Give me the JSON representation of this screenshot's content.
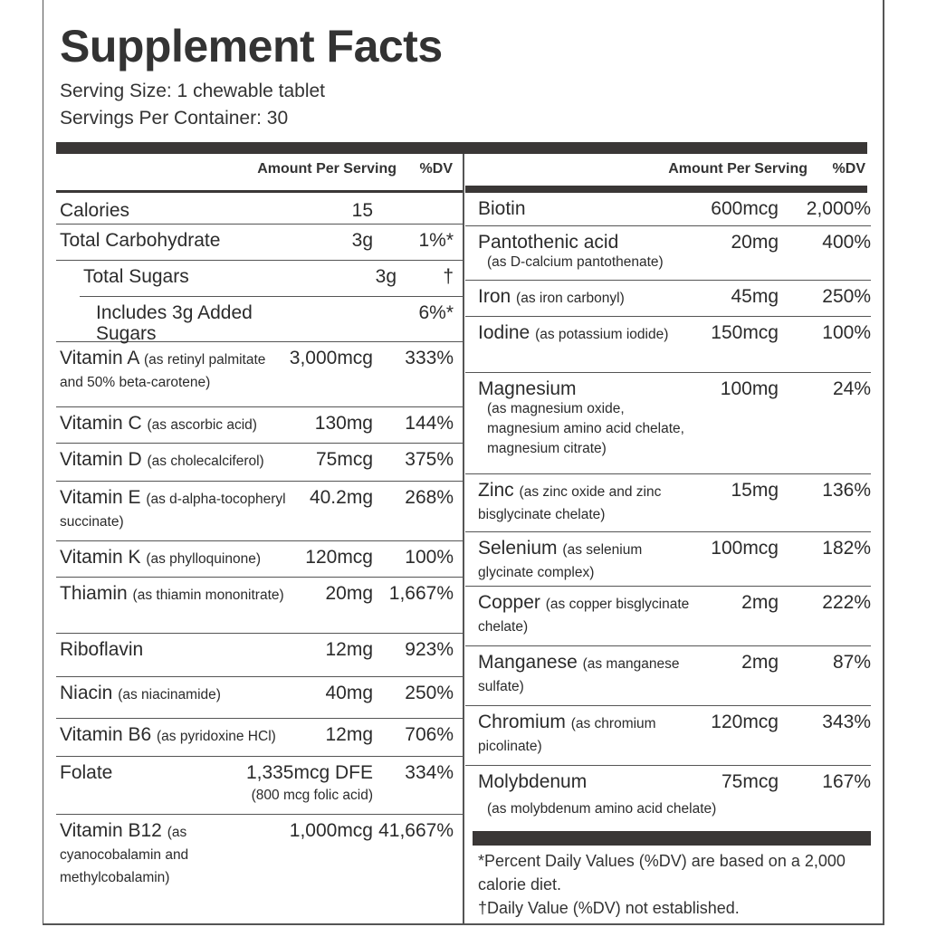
{
  "title": "Supplement Facts",
  "serving_size": "Serving Size: 1 chewable tablet",
  "servings_per_container": "Servings Per Container: 30",
  "left": {
    "amount_header": "Amount Per Serving",
    "dv_header": "%DV",
    "rows": [
      {
        "name": "Calories",
        "amount": "15"
      },
      {
        "name": "Total Carbohydrate",
        "amount": "3g",
        "dv": "1%*"
      },
      {
        "name": "Total Sugars",
        "amount": "3g",
        "dv": "†"
      },
      {
        "name": "Includes 3g Added Sugars",
        "dv": "6%*"
      },
      {
        "name": "Vitamin A",
        "note": "(as retinyl palmitate and 50% beta-carotene)",
        "amount": "3,000mcg",
        "dv": "333%"
      },
      {
        "name": "Vitamin C",
        "note": "(as ascorbic acid)",
        "amount": "130mg",
        "dv": "144%"
      },
      {
        "name": "Vitamin D",
        "note": "(as cholecalciferol)",
        "amount": "75mcg",
        "dv": "375%"
      },
      {
        "name": "Vitamin E",
        "note": "(as d-alpha-tocopheryl succinate)",
        "amount": "40.2mg",
        "dv": "268%"
      },
      {
        "name": "Vitamin K",
        "note": "(as phylloquinone)",
        "amount": "120mcg",
        "dv": "100%"
      },
      {
        "name": "Thiamin",
        "note": "(as thiamin mononitrate)",
        "amount": "20mg",
        "dv": "1,667%"
      },
      {
        "name": "Riboflavin",
        "amount": "12mg",
        "dv": "923%"
      },
      {
        "name": "Niacin",
        "note": "(as niacinamide)",
        "amount": "40mg",
        "dv": "250%"
      },
      {
        "name": "Vitamin B6",
        "note": "(as pyridoxine HCl)",
        "amount": "12mg",
        "dv": "706%"
      },
      {
        "name": "Folate",
        "amount": "1,335mcg DFE",
        "amount_note": "(800 mcg folic acid)",
        "dv": "334%"
      },
      {
        "name": "Vitamin B12",
        "note": "(as cyanocobalamin and methylcobalamin)",
        "amount": "1,000mcg",
        "dv": "41,667%"
      }
    ]
  },
  "right": {
    "amount_header": "Amount Per Serving",
    "dv_header": "%DV",
    "rows": [
      {
        "name": "Biotin",
        "amount": "600mcg",
        "dv": "2,000%"
      },
      {
        "name": "Pantothenic acid",
        "note": "(as D-calcium pantothenate)",
        "amount": "20mg",
        "dv": "400%"
      },
      {
        "name": "Iron",
        "note": "(as iron carbonyl)",
        "amount": "45mg",
        "dv": "250%"
      },
      {
        "name": "Iodine",
        "note": "(as potassium iodide)",
        "amount": "150mcg",
        "dv": "100%"
      },
      {
        "name": "Magnesium",
        "note": "(as magnesium oxide, magnesium amino acid chelate, magnesium citrate)",
        "amount": "100mg",
        "dv": "24%"
      },
      {
        "name": "Zinc",
        "note": "(as zinc oxide and zinc bisglycinate chelate)",
        "amount": "15mg",
        "dv": "136%"
      },
      {
        "name": "Selenium",
        "note": "(as selenium glycinate complex)",
        "amount": "100mcg",
        "dv": "182%"
      },
      {
        "name": "Copper",
        "note": "(as copper bisglycinate chelate)",
        "amount": "2mg",
        "dv": "222%"
      },
      {
        "name": "Manganese",
        "note": "(as manganese sulfate)",
        "amount": "2mg",
        "dv": "87%"
      },
      {
        "name": "Chromium",
        "note": "(as chromium picolinate)",
        "amount": "120mcg",
        "dv": "343%"
      },
      {
        "name": "Molybdenum",
        "note": "(as molybdenum amino acid chelate)",
        "amount": "75mcg",
        "dv": "167%"
      }
    ]
  },
  "footnotes": [
    "*Percent Daily Values (%DV) are based on a 2,000 calorie diet.",
    "†Daily Value (%DV) not established."
  ]
}
